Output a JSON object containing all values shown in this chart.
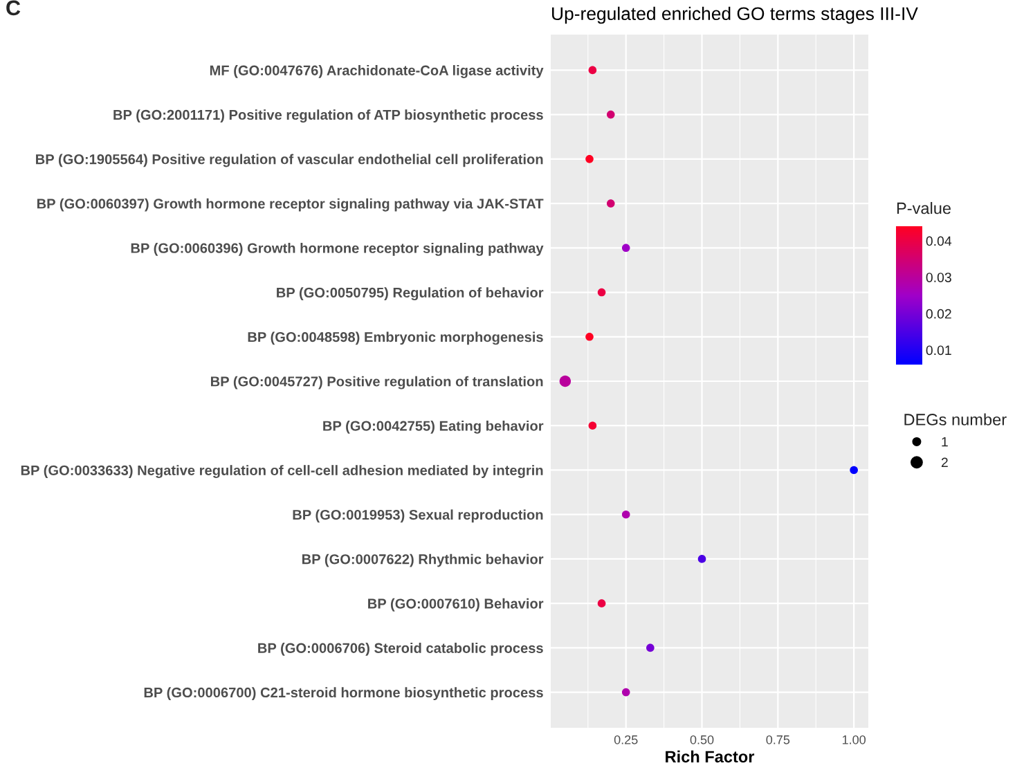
{
  "chart_data": {
    "type": "bubble",
    "title": "Up-regulated enriched GO terms stages III-IV",
    "xlabel": "Rich Factor",
    "clabel": "P-value",
    "legend_title": "DEGs number",
    "annotations": [
      "C"
    ],
    "categories": [
      "MF (GO:0047676) Arachidonate-CoA ligase activity",
      "BP (GO:2001171) Positive regulation of ATP biosynthetic process",
      "BP (GO:1905564) Positive regulation of vascular endothelial cell proliferation",
      "BP (GO:0060397) Growth hormone receptor signaling pathway via JAK-STAT",
      "BP (GO:0060396) Growth hormone receptor signaling pathway",
      "BP (GO:0050795) Regulation of behavior",
      "BP (GO:0048598) Embryonic morphogenesis",
      "BP (GO:0045727) Positive regulation of translation",
      "BP (GO:0042755) Eating behavior",
      "BP (GO:0033633) Negative regulation of cell-cell adhesion mediated by integrin",
      "BP (GO:0019953) Sexual reproduction",
      "BP (GO:0007622) Rhythmic behavior",
      "BP (GO:0007610) Behavior",
      "BP (GO:0006706) Steroid catabolic process",
      "BP (GO:0006700) C21-steroid hormone biosynthetic process"
    ],
    "orientation": "horizontal",
    "values": [
      0.14,
      0.2,
      0.13,
      0.2,
      0.25,
      0.17,
      0.13,
      0.05,
      0.14,
      1.0,
      0.25,
      0.5,
      0.17,
      0.33,
      0.25
    ],
    "sizes": [
      1,
      1,
      1,
      1,
      1,
      1,
      1,
      2,
      1,
      1,
      1,
      1,
      1,
      1,
      1
    ],
    "size_legend": [
      1,
      2
    ],
    "cvalues": [
      0.04,
      0.035,
      0.044,
      0.035,
      0.025,
      0.04,
      0.044,
      0.03,
      0.042,
      0.006,
      0.028,
      0.015,
      0.04,
      0.02,
      0.028
    ],
    "clim": [
      0.006,
      0.044
    ],
    "cticks": [
      0.01,
      0.02,
      0.03,
      0.04
    ],
    "xlim": [
      0.0025,
      1.0475
    ],
    "xticks": [
      {
        "value": 0.25,
        "label": "0.25"
      },
      {
        "value": 0.5,
        "label": "0.50"
      },
      {
        "value": 0.75,
        "label": "0.75"
      },
      {
        "value": 1.0,
        "label": "1.00"
      }
    ],
    "grid": true
  }
}
